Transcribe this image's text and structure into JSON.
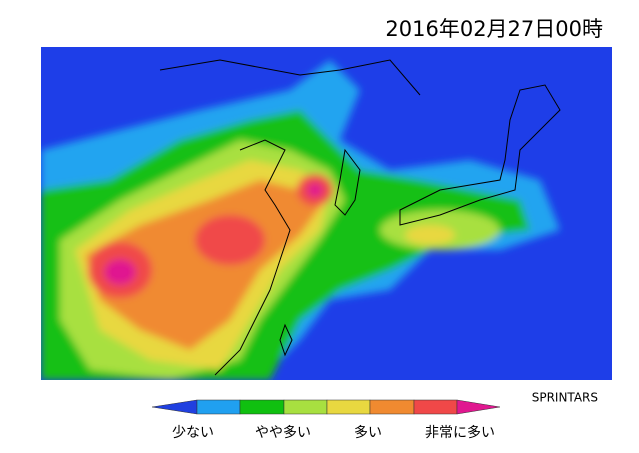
{
  "header": {
    "title": "2016年02月27日00時"
  },
  "credit": "SPRINTARS",
  "legend": {
    "labels": [
      "少ない",
      "やや多い",
      "多い",
      "非常に多い"
    ]
  }
}
